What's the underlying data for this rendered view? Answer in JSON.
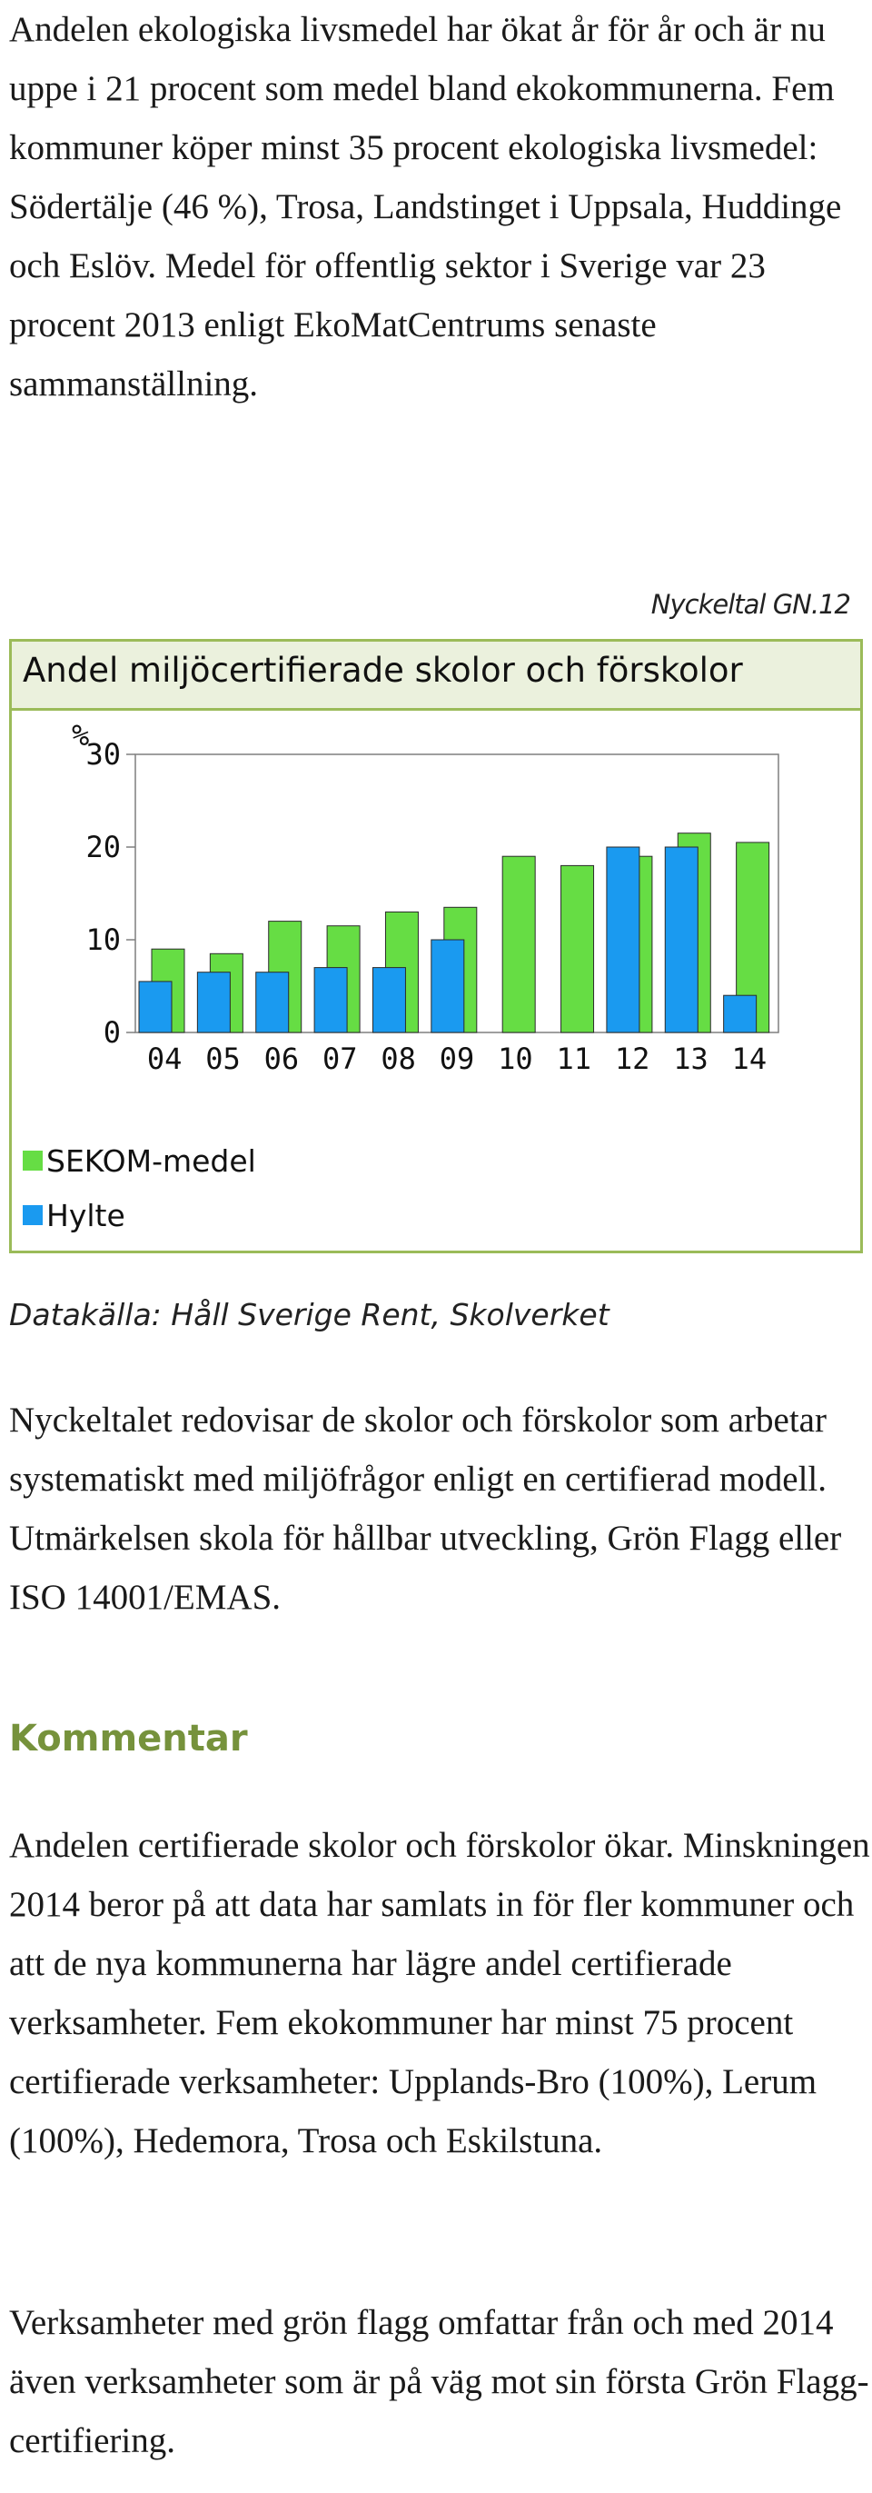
{
  "intro_text": "Andelen ekologiska livsmedel har ökat år för år och är nu uppe i 21 procent som medel bland ekokommunerna. Fem kommuner köper minst 35 procent ekologiska livsmedel: Södertälje (46 %), Trosa, Landstinget i Uppsala, Huddinge och Eslöv. Medel för offentlig sektor i Sverige var 23 procent 2013 enligt EkoMatCentrums senaste sammanställning.",
  "indicator_code": "Nyckeltal GN.12",
  "chart_title": "Andel miljöcertifierade skolor och förskolor",
  "chart_data": {
    "type": "bar",
    "title": "Andel miljöcertifierade skolor och förskolor",
    "xlabel": "",
    "ylabel": "%",
    "ylim": [
      0,
      30
    ],
    "yticks": [
      "0",
      "10",
      "20",
      "30"
    ],
    "categories": [
      "04",
      "05",
      "06",
      "07",
      "08",
      "09",
      "10",
      "11",
      "12",
      "13",
      "14"
    ],
    "series": [
      {
        "name": "SEKOM-medel",
        "color": "#66dd44",
        "values": [
          9,
          8.5,
          12,
          11.5,
          13,
          13.5,
          19,
          18,
          19,
          21.5,
          20.5
        ]
      },
      {
        "name": "Hylte",
        "color": "#1a9af0",
        "values": [
          5.5,
          6.5,
          6.5,
          7,
          7,
          10,
          null,
          null,
          20,
          20,
          4
        ]
      }
    ],
    "legend_position": "bottom-left",
    "grid": false
  },
  "legend": [
    {
      "label": "SEKOM-medel",
      "color": "#66dd44"
    },
    {
      "label": "Hylte",
      "color": "#1a9af0"
    }
  ],
  "source_text": "Datakälla: Håll Sverige Rent, Skolverket",
  "description_text": "Nyckeltalet redovisar de skolor och förskolor som arbetar systematiskt med miljöfrågor enligt en certifierad modell. Utmärkelsen skola för hållbar utveckling, Grön Flagg eller ISO 14001/EMAS.",
  "comment_heading": "Kommentar",
  "comment_paragraph_1": "Andelen certifierade skolor och förskolor ökar. Minskningen 2014 beror på att data har samlats in för fler kommuner och att de nya kommunerna har lägre andel certifierade verksamheter. Fem ekokommuner har minst 75 procent certifierade verksamheter: Upplands-Bro (100%), Lerum (100%), Hedemora, Trosa och Eskilstuna.",
  "comment_paragraph_2": "Verksamheter med grön flagg omfattar från och med 2014 även verksamheter som är på väg mot sin första Grön Flagg-certifiering."
}
